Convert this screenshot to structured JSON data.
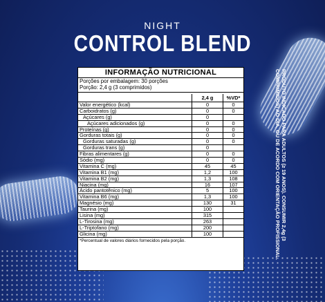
{
  "header": {
    "line1": "NIGHT",
    "brand": "CONTROL BLEND"
  },
  "table": {
    "title": "INFORMAÇÃO NUTRICIONAL",
    "serving_lines": [
      "Porções por embalagem: 30 porções",
      "Porção: 2,4 g (3 comprimidos)"
    ],
    "col_headers": [
      "2,4 g",
      "%VD*"
    ],
    "rows": [
      {
        "name": "Valor energético (kcal)",
        "amount": "0",
        "dv": "0"
      },
      {
        "name": "Carboidratos (g)",
        "amount": "0",
        "dv": "0"
      },
      {
        "name": "Açúcares (g)",
        "amount": "0",
        "dv": ""
      },
      {
        "name": "Açúcares adicionados (g)",
        "amount": "0",
        "dv": "0"
      },
      {
        "name": "Proteínas (g)",
        "amount": "0",
        "dv": "0"
      },
      {
        "name": "Gorduras totais (g)",
        "amount": "0",
        "dv": "0"
      },
      {
        "name": "Gorduras saturadas (g)",
        "amount": "0",
        "dv": "0"
      },
      {
        "name": "Gorduras trans (g)",
        "amount": "0",
        "dv": ""
      },
      {
        "name": "Fibras alimentares (g)",
        "amount": "0",
        "dv": "0"
      },
      {
        "name": "Sódio (mg)",
        "amount": "0",
        "dv": "0"
      },
      {
        "name": "Vitamina C (mg)",
        "amount": "45",
        "dv": "45"
      },
      {
        "name": "Vitamina B1 (mg)",
        "amount": "1,2",
        "dv": "100"
      },
      {
        "name": "Vitamina B2 (mg)",
        "amount": "1,3",
        "dv": "108"
      },
      {
        "name": "Niacina (mg)",
        "amount": "16",
        "dv": "107"
      },
      {
        "name": "Ácido pantotênico (mg)",
        "amount": "5",
        "dv": "100"
      },
      {
        "name": "Vitamina B6 (mg)",
        "amount": "1,3",
        "dv": "100"
      },
      {
        "name": "Magnésio (mg)",
        "amount": "130",
        "dv": "31"
      },
      {
        "name": "Taurina (mg)",
        "amount": "100",
        "dv": ""
      },
      {
        "name": "Lisina (mg)",
        "amount": "315",
        "dv": ""
      },
      {
        "name": "L-Tirosina (mg)",
        "amount": "263",
        "dv": ""
      },
      {
        "name": "L-Triptofano (mg)",
        "amount": "200",
        "dv": ""
      },
      {
        "name": "Glicina (mg)",
        "amount": "100",
        "dv": ""
      }
    ],
    "footnote": "*Percentual de valores diários fornecidos pela porção."
  },
  "sidenote": "PRODUTO INDICADO PARA ADULTOS (≥ 19 ANOS). CONSUMIR 2,4g (3 COMPRIMIDOS) AO DIA, OU DE ACORDO COM ORIENTAÇÃO PROFISSIONAL."
}
